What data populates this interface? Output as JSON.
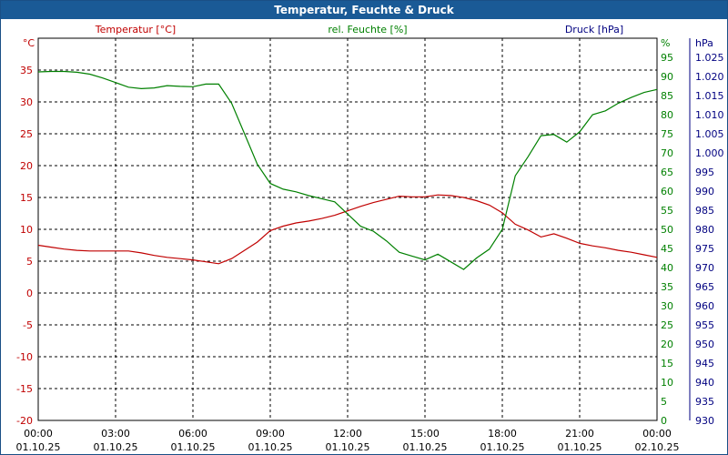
{
  "window": {
    "title": "Temperatur, Feuchte & Druck"
  },
  "chart_data": {
    "type": "line",
    "title": "Temperatur, Feuchte & Druck",
    "x_ticks": [
      {
        "time": "00:00",
        "date": "01.10.25"
      },
      {
        "time": "03:00",
        "date": "01.10.25"
      },
      {
        "time": "06:00",
        "date": "01.10.25"
      },
      {
        "time": "09:00",
        "date": "01.10.25"
      },
      {
        "time": "12:00",
        "date": "01.10.25"
      },
      {
        "time": "15:00",
        "date": "01.10.25"
      },
      {
        "time": "18:00",
        "date": "01.10.25"
      },
      {
        "time": "21:00",
        "date": "01.10.25"
      },
      {
        "time": "00:00",
        "date": "02.10.25"
      }
    ],
    "xlim": [
      0,
      24
    ],
    "grid": true,
    "axes": {
      "temperature": {
        "label": "Temperatur [°C]",
        "unit": "°C",
        "ylim": [
          -20,
          40
        ],
        "ticks": [
          "-20",
          "-15",
          "-10",
          "-5",
          "0",
          "5",
          "10",
          "15",
          "20",
          "25",
          "30",
          "35"
        ],
        "color": "#c00000"
      },
      "humidity": {
        "label": "rel. Feuchte [%]",
        "unit": "%",
        "ylim": [
          0,
          100
        ],
        "ticks": [
          "0",
          "5",
          "10",
          "15",
          "20",
          "25",
          "30",
          "35",
          "40",
          "45",
          "50",
          "55",
          "60",
          "65",
          "70",
          "75",
          "80",
          "85",
          "90",
          "95"
        ],
        "color": "#008000"
      },
      "pressure": {
        "label": "Druck [hPa]",
        "unit": "hPa",
        "ylim": [
          930,
          1030
        ],
        "ticks": [
          "930",
          "935",
          "940",
          "945",
          "950",
          "955",
          "960",
          "965",
          "970",
          "975",
          "980",
          "985",
          "990",
          "995",
          "1.000",
          "1.005",
          "1.010",
          "1.015",
          "1.020",
          "1.025"
        ],
        "color": "#000080"
      }
    },
    "series": [
      {
        "name": "Temperatur [°C]",
        "axis": "temperature",
        "color": "#c00000",
        "x": [
          0,
          0.5,
          1,
          1.5,
          2,
          2.5,
          3,
          3.5,
          4,
          4.5,
          5,
          5.5,
          6,
          6.5,
          7,
          7.5,
          8,
          8.5,
          9,
          9.5,
          10,
          10.5,
          11,
          11.5,
          12,
          12.5,
          13,
          13.5,
          14,
          14.5,
          15,
          15.5,
          16,
          16.5,
          17,
          17.5,
          18,
          18.5,
          19,
          19.5,
          20,
          20.5,
          21,
          21.5,
          22,
          22.5,
          23,
          23.5,
          24
        ],
        "values": [
          7.5,
          7.2,
          6.9,
          6.7,
          6.6,
          6.6,
          6.6,
          6.6,
          6.3,
          5.9,
          5.6,
          5.4,
          5.2,
          4.9,
          4.6,
          5.4,
          6.7,
          8.0,
          9.8,
          10.5,
          11.0,
          11.3,
          11.7,
          12.2,
          12.9,
          13.6,
          14.2,
          14.7,
          15.2,
          15.1,
          15.1,
          15.4,
          15.3,
          15.0,
          14.5,
          13.8,
          12.6,
          10.8,
          9.9,
          8.8,
          9.3,
          8.6,
          7.8,
          7.4,
          7.1,
          6.7,
          6.4,
          6.0,
          5.6
        ]
      },
      {
        "name": "rel. Feuchte [%]",
        "axis": "humidity",
        "color": "#008000",
        "x": [
          0,
          0.5,
          1,
          1.5,
          2,
          2.5,
          3,
          3.5,
          4,
          4.5,
          5,
          5.5,
          6,
          6.5,
          7,
          7.5,
          8,
          8.5,
          9,
          9.5,
          10,
          10.5,
          11,
          11.5,
          12,
          12.5,
          13,
          13.5,
          14,
          14.5,
          15,
          15.5,
          16,
          16.5,
          17,
          17.5,
          18,
          18.5,
          19,
          19.5,
          20,
          20.5,
          21,
          21.5,
          22,
          22.5,
          23,
          23.5,
          24
        ],
        "values": [
          91.2,
          91.3,
          91.3,
          91.1,
          90.6,
          89.6,
          88.4,
          87.2,
          86.8,
          87.0,
          87.6,
          87.4,
          87.3,
          88.0,
          88.0,
          83.0,
          75.0,
          67.0,
          62.0,
          60.5,
          59.8,
          58.8,
          58.0,
          57.2,
          54.0,
          50.8,
          49.5,
          47.0,
          44.0,
          43.0,
          42.0,
          43.5,
          41.5,
          39.5,
          42.5,
          44.8,
          50.0,
          64.0,
          69.0,
          74.5,
          74.8,
          72.8,
          75.5,
          80.0,
          81.0,
          83.0,
          84.5,
          85.8,
          86.6
        ]
      }
    ],
    "legend": "top"
  }
}
